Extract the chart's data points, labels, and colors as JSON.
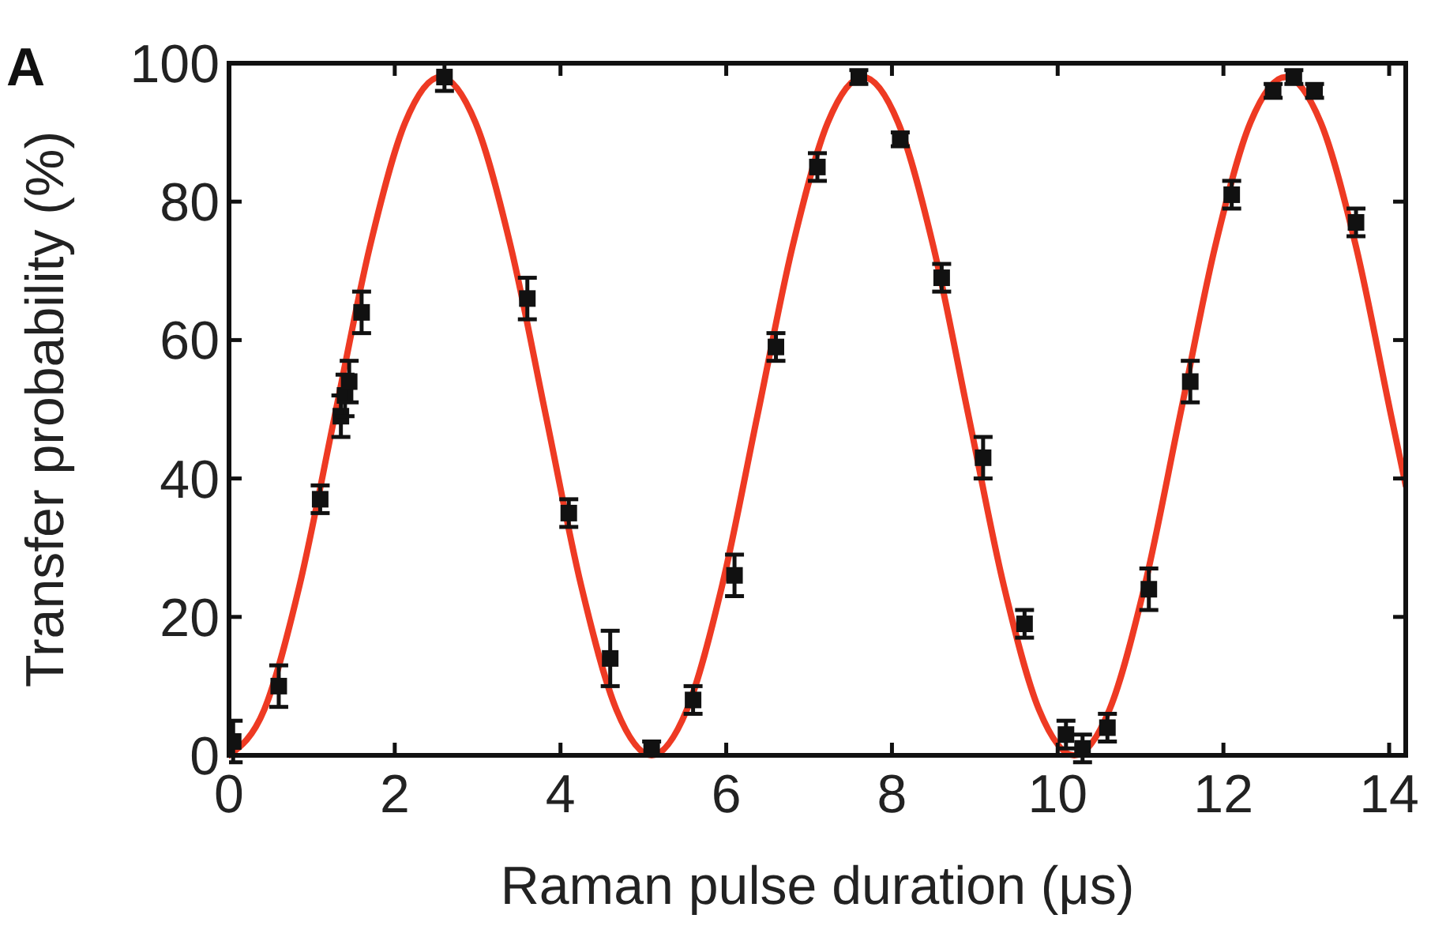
{
  "chart_data": {
    "type": "scatter",
    "title": "A",
    "xlabel": "Raman pulse duration (μs)",
    "ylabel": "Transfer probability (%)",
    "xlim": [
      0,
      14.2
    ],
    "ylim": [
      0,
      100
    ],
    "xticks": [
      0,
      2,
      4,
      6,
      8,
      10,
      12,
      14
    ],
    "yticks": [
      0,
      20,
      40,
      60,
      80,
      100
    ],
    "grid": false,
    "series": [
      {
        "color": "#111111",
        "marker": "square",
        "x": [
          0.05,
          0.6,
          1.1,
          1.35,
          1.4,
          1.45,
          1.6,
          2.6,
          3.6,
          4.1,
          4.6,
          5.1,
          5.6,
          6.1,
          6.6,
          7.1,
          7.6,
          8.1,
          8.6,
          9.1,
          9.6,
          10.1,
          10.3,
          10.6,
          11.1,
          11.6,
          12.1,
          12.6,
          12.85,
          13.1,
          13.6
        ],
        "values": [
          2,
          10,
          37,
          49,
          52,
          54,
          64,
          98,
          66,
          35,
          14,
          1,
          8,
          26,
          59,
          85,
          98,
          89,
          69,
          43,
          19,
          3,
          1,
          4,
          24,
          54,
          81,
          96,
          98,
          96,
          77
        ],
        "errors": [
          3,
          3,
          2,
          3,
          3,
          3,
          3,
          2,
          3,
          2,
          4,
          1,
          2,
          3,
          2,
          2,
          1,
          1,
          2,
          3,
          2,
          2,
          2,
          2,
          3,
          3,
          2,
          1,
          1,
          1,
          2
        ]
      },
      {
        "type": "line",
        "color": "#ee3a23",
        "line_style": "solid",
        "x": [
          0,
          0.425,
          0.85,
          1.275,
          1.7,
          2.125,
          2.55,
          2.975,
          3.4,
          3.825,
          4.25,
          4.675,
          5.1,
          5.525,
          5.95,
          6.375,
          6.8,
          7.225,
          7.65,
          8.075,
          8.5,
          8.925,
          9.35,
          9.775,
          10.2,
          10.625,
          11.05,
          11.475,
          11.9,
          12.325,
          12.75,
          13.175,
          13.6,
          14.025,
          14.2
        ],
        "values": [
          0,
          6.6,
          24.5,
          49,
          73.5,
          91.4,
          98,
          91.4,
          73.5,
          49,
          24.5,
          6.6,
          0,
          6.6,
          24.5,
          49,
          73.5,
          91.4,
          98,
          91.4,
          73.5,
          49,
          24.5,
          6.6,
          0,
          6.6,
          24.5,
          49,
          73.5,
          91.4,
          98,
          91.4,
          73.5,
          49,
          39
        ]
      }
    ]
  }
}
